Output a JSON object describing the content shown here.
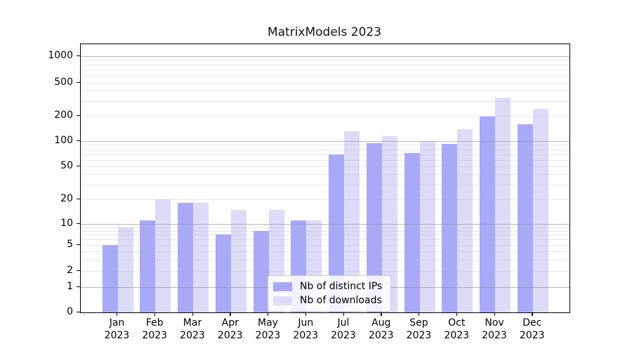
{
  "title": "MatrixModels 2023",
  "colors": {
    "ips_bar": "#a9a9fa",
    "downloads_bar": "#dcdcf9",
    "grid_major": "rgba(140,140,140,0.62)",
    "grid_minor": "rgba(175,175,175,0.30)",
    "axis": "#000000"
  },
  "legend": {
    "items": [
      {
        "label": "Nb of distinct IPs",
        "color": "#a9a9fa"
      },
      {
        "label": "Nb of downloads",
        "color": "#dcdcf9"
      }
    ]
  },
  "y_axis": {
    "tick_labels": [
      "1000",
      "500",
      "200",
      "100",
      "50",
      "20",
      "10",
      "5",
      "2",
      "1",
      "0"
    ],
    "tick_values": [
      1000,
      500,
      200,
      100,
      50,
      20,
      10,
      5,
      2,
      1,
      0
    ]
  },
  "x_axis": {
    "months": [
      "Jan",
      "Feb",
      "Mar",
      "Apr",
      "May",
      "Jun",
      "Jul",
      "Aug",
      "Sep",
      "Oct",
      "Nov",
      "Dec"
    ],
    "year": "2023"
  },
  "chart_data": {
    "type": "bar",
    "title": "MatrixModels 2023",
    "categories": [
      "Jan 2023",
      "Feb 2023",
      "Mar 2023",
      "Apr 2023",
      "May 2023",
      "Jun 2023",
      "Jul 2023",
      "Aug 2023",
      "Sep 2023",
      "Oct 2023",
      "Nov 2023",
      "Dec 2023"
    ],
    "series": [
      {
        "name": "Nb of distinct IPs",
        "color": "#a9a9fa",
        "values": [
          5,
          11,
          18,
          7,
          8,
          11,
          70,
          95,
          72,
          92,
          195,
          160
        ]
      },
      {
        "name": "Nb of downloads",
        "color": "#dcdcf9",
        "values": [
          9,
          20,
          18,
          15,
          15,
          11,
          130,
          115,
          98,
          140,
          330,
          245
        ]
      }
    ],
    "xlabel": "",
    "ylabel": "",
    "yscale": "symlog",
    "yticks": [
      0,
      1,
      2,
      5,
      10,
      20,
      50,
      100,
      200,
      500,
      1000
    ],
    "ylim": [
      0,
      1400
    ],
    "grid": "horizontal major (powers of 10, darker) and minor (2-9 per decade, faint), drawn over bars",
    "legend_position": "lower center inside plot",
    "bar_layout": "grouped pairs, touching within group"
  },
  "gridlines": {
    "major_values": [
      1,
      10,
      100,
      1000
    ],
    "minor_values": [
      2,
      3,
      4,
      5,
      6,
      7,
      8,
      9,
      20,
      30,
      40,
      50,
      60,
      70,
      80,
      90,
      200,
      300,
      400,
      500,
      600,
      700,
      800,
      900
    ]
  }
}
